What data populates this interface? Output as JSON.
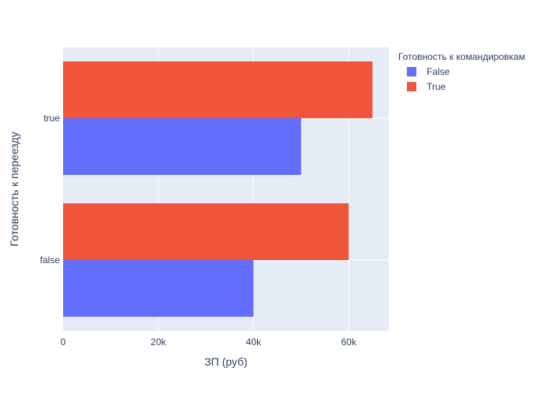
{
  "chart_data": {
    "type": "bar",
    "orientation": "horizontal",
    "barmode": "group",
    "categories": [
      "false",
      "true"
    ],
    "series": [
      {
        "name": "False",
        "values": [
          40000,
          50000
        ],
        "color": "#636efa"
      },
      {
        "name": "True",
        "values": [
          60000,
          65000
        ],
        "color": "#ef553b"
      }
    ],
    "xlabel": "ЗП (руб)",
    "ylabel": "Готовность к переезду",
    "xlim": [
      0,
      68421
    ],
    "xticks": [
      0,
      20000,
      40000,
      60000
    ],
    "xtick_labels": [
      "0",
      "20k",
      "40k",
      "60k"
    ],
    "legend_title": "Готовность к командировкам",
    "legend_position": "top-right",
    "grid": true,
    "plot_bgcolor": "#e5ecf6"
  }
}
